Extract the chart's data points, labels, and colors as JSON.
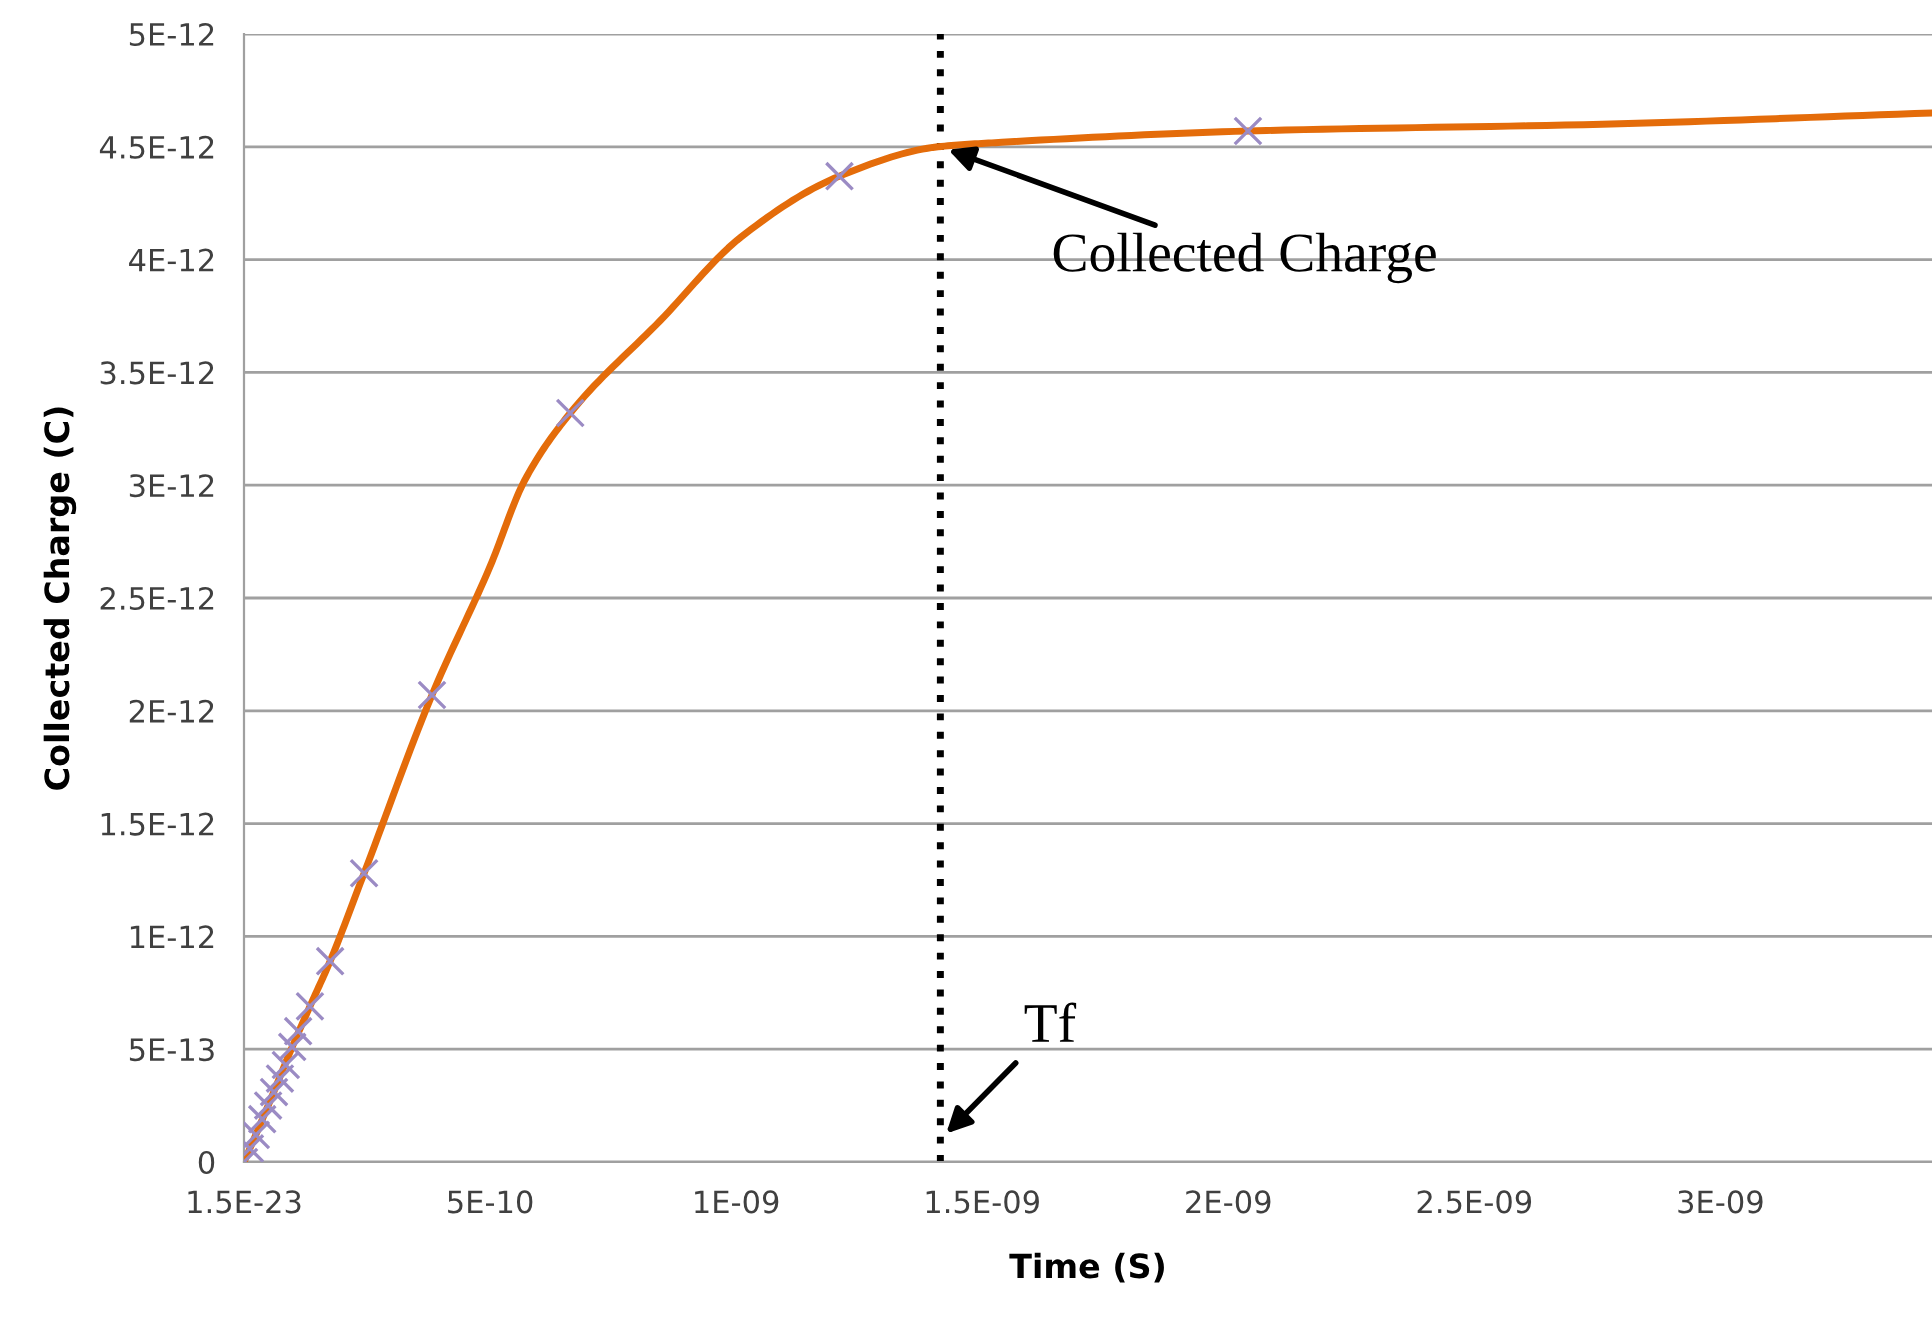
{
  "chart_data": {
    "type": "line",
    "xlabel": "Time (S)",
    "ylabel": "Collected Charge (C)",
    "series": [
      {
        "color": "#e46c0a",
        "marker": "none",
        "x": [
          0,
          1.2e-11,
          4.9e-11,
          9.8e-11,
          1.34e-10,
          1.75e-10,
          2.44e-10,
          3.82e-10,
          5e-10,
          5.7e-10,
          6.63e-10,
          8.46e-10,
          1.01e-09,
          1.21e-09,
          1.41e-09,
          1.54e-09,
          2.04e-09,
          2.76e-09,
          3.43e-09
        ],
        "values": [
          0,
          6e-14,
          2.5e-13,
          5.1e-13,
          6.9e-13,
          8.9e-13,
          1.28e-12,
          2.07e-12,
          2.64e-12,
          3.02e-12,
          3.32e-12,
          3.73e-12,
          4.1e-12,
          4.37e-12,
          4.5e-12,
          4.52e-12,
          4.57e-12,
          4.6e-12,
          4.65e-12
        ]
      },
      {
        "type": "scatter",
        "color": "#9b8bc4",
        "marker": "cross",
        "x": [
          0,
          1.2e-11,
          2.4e-11,
          3.7e-11,
          4.9e-11,
          6.1e-11,
          7.3e-11,
          8.5e-11,
          9.8e-11,
          1.1e-10,
          1.34e-10,
          1.75e-10,
          2.44e-10,
          3.82e-10,
          6.63e-10,
          1.21e-09,
          2.04e-09
        ],
        "values": [
          0,
          6e-14,
          1.2e-13,
          1.9e-13,
          2.5e-13,
          3.1e-13,
          3.7e-13,
          4.3e-13,
          5.1e-13,
          5.8e-13,
          6.9e-13,
          8.9e-13,
          1.28e-12,
          2.07e-12,
          3.32e-12,
          4.37e-12,
          4.57e-12
        ]
      }
    ],
    "xlim": [
      0,
      3.43e-09
    ],
    "xticks": [
      {
        "value": 1.5e-23,
        "label": "1.5E-23"
      },
      {
        "value": 5e-10,
        "label": "5E-10"
      },
      {
        "value": 1e-09,
        "label": "1E-09"
      },
      {
        "value": 1.5e-09,
        "label": "1.5E-09"
      },
      {
        "value": 2e-09,
        "label": "2E-09"
      },
      {
        "value": 2.5e-09,
        "label": "2.5E-09"
      },
      {
        "value": 3e-09,
        "label": "3E-09"
      }
    ],
    "ylim": [
      0,
      5e-12
    ],
    "yticks": [
      0,
      {
        "value": 5e-13,
        "label": "5E-13"
      },
      {
        "value": 1e-12,
        "label": "1E-12"
      },
      {
        "value": 1.5e-12,
        "label": "1.5E-12"
      },
      {
        "value": 2e-12,
        "label": "2E-12"
      },
      {
        "value": 2.5e-12,
        "label": "2.5E-12"
      },
      {
        "value": 3e-12,
        "label": "3E-12"
      },
      {
        "value": 3.5e-12,
        "label": "3.5E-12"
      },
      {
        "value": 4e-12,
        "label": "4E-12"
      },
      {
        "value": 4.5e-12,
        "label": "4.5E-12"
      },
      {
        "value": 5e-12,
        "label": "5E-12"
      }
    ],
    "grid": "y",
    "ref_lines": [
      {
        "axis": "x",
        "value": 1.415e-09,
        "color": "#000000",
        "line_style": "dotted"
      }
    ],
    "annotations": [
      {
        "text": "Collected Charge",
        "x": 1.415e-09,
        "y": 4.5e-12
      },
      {
        "text": "Tf",
        "x": 1.415e-09,
        "y": 1e-13
      }
    ]
  }
}
